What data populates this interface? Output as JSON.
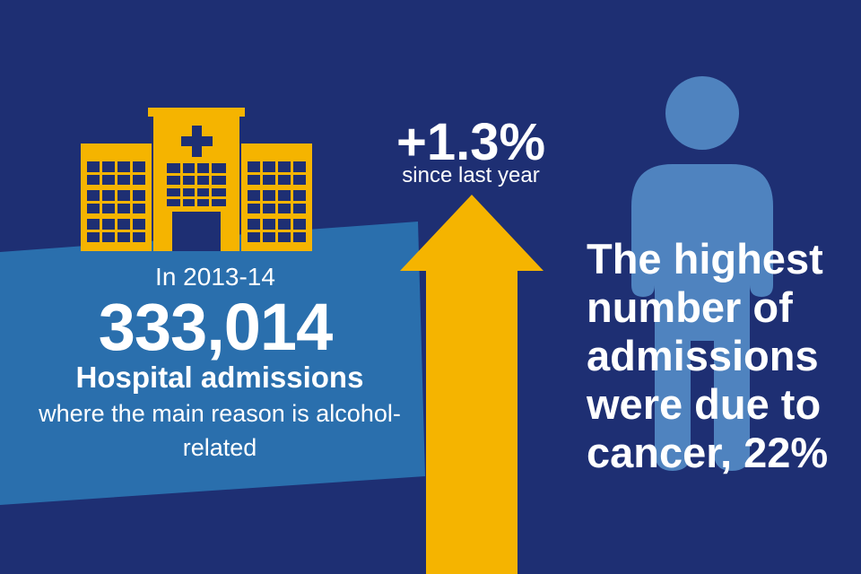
{
  "colors": {
    "background": "#1e2f73",
    "panel": "#2a6fad",
    "accent_yellow": "#f5b400",
    "person": "#4f83bf",
    "text": "#ffffff"
  },
  "icons": [
    "hospital-icon",
    "up-arrow-icon",
    "person-icon"
  ],
  "admissions": {
    "year_label": "In 2013-14",
    "count": "333,014",
    "heading": "Hospital admissions",
    "description": "where the main reason is alcohol-related"
  },
  "change": {
    "value": "+1.3%",
    "label": "since last year"
  },
  "highest": {
    "text": "The highest number of admissions were due to cancer, 22%"
  }
}
